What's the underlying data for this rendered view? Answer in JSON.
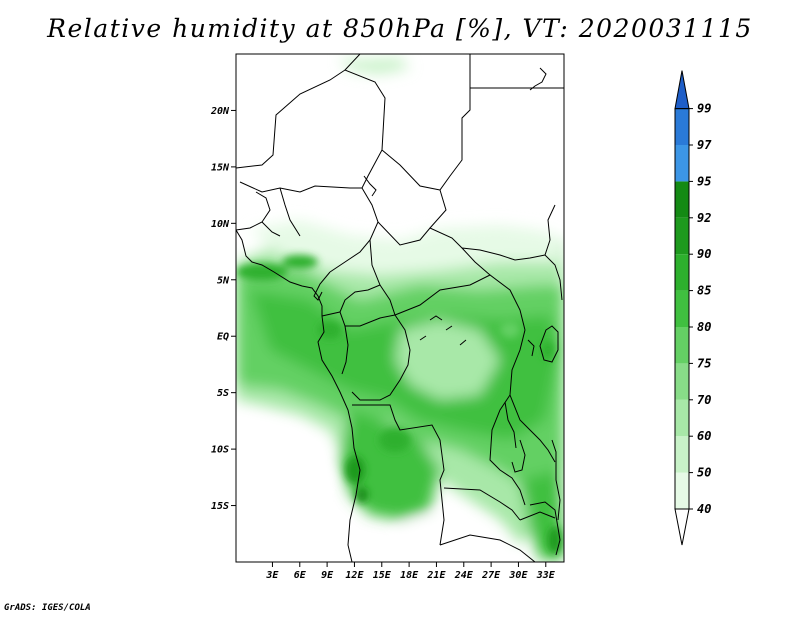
{
  "title": "Relative humidity at 850hPa [%], VT: 2020031115",
  "credit": "GrADS: IGES/COLA",
  "map": {
    "lon_range": [
      -1,
      35
    ],
    "lat_range": [
      -20,
      25
    ],
    "lat_labels": [
      "20N",
      "15N",
      "10N",
      "5N",
      "EQ",
      "5S",
      "10S",
      "15S"
    ],
    "lat_values": [
      20,
      15,
      10,
      5,
      0,
      -5,
      -10,
      -15
    ],
    "lon_labels": [
      "3E",
      "6E",
      "9E",
      "12E",
      "15E",
      "18E",
      "21E",
      "24E",
      "27E",
      "30E",
      "33E"
    ],
    "lon_values": [
      3,
      6,
      9,
      12,
      15,
      18,
      21,
      24,
      27,
      30,
      33
    ]
  },
  "colorbar": {
    "labels": [
      "99",
      "97",
      "95",
      "92",
      "90",
      "85",
      "80",
      "75",
      "70",
      "60",
      "50",
      "40"
    ],
    "colors": [
      "#ffffff",
      "#e6fae6",
      "#c8f2c8",
      "#a8e8a8",
      "#88dc88",
      "#64d064",
      "#40c040",
      "#2db02d",
      "#1e9a1e",
      "#148a14",
      "#3c96e6",
      "#2a7ad8",
      "#1e5ec8"
    ]
  }
}
